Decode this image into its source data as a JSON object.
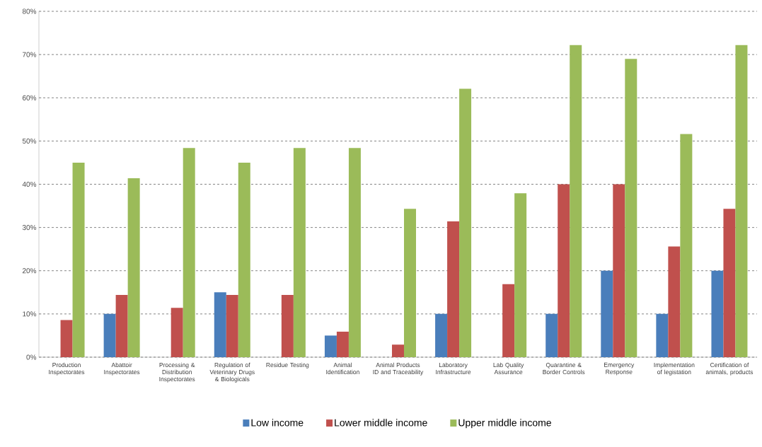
{
  "chart_data": {
    "type": "bar",
    "categories": [
      "Production Inspectorates",
      "Abattoir Inspectorates",
      "Processing & Distribution Inspectorates",
      "Regulation of Veterinary Drugs & Biologicals",
      "Residue Testing",
      "Animal Identification",
      "Animal Products ID and Traceability",
      "Laboratory Infrastructure",
      "Lab Quality Assurance",
      "Quarantine & Border Controls",
      "Emergency Response",
      "Implementation of legistation",
      "Certification of animals, products"
    ],
    "series": [
      {
        "name": "Low income",
        "color": "#4a7ebb",
        "values": [
          0,
          10,
          0,
          15,
          0,
          5,
          0,
          10,
          0,
          10,
          20,
          10,
          20
        ]
      },
      {
        "name": "Lower middle income",
        "color": "#c0504d",
        "values": [
          8.6,
          14.4,
          11.4,
          14.4,
          14.4,
          5.9,
          2.9,
          31.4,
          16.9,
          40,
          40,
          25.6,
          34.3
        ]
      },
      {
        "name": "Upper middle income",
        "color": "#9bbb59",
        "values": [
          45,
          41.4,
          48.4,
          45,
          48.4,
          48.4,
          34.3,
          62.1,
          37.9,
          72.2,
          69,
          51.6,
          72.2
        ]
      }
    ],
    "ylim": [
      0,
      80
    ],
    "yticks": [
      {
        "value": 0,
        "label": "0%"
      },
      {
        "value": 10,
        "label": "10%"
      },
      {
        "value": 20,
        "label": "20%"
      },
      {
        "value": 30,
        "label": "30%"
      },
      {
        "value": 40,
        "label": "40%"
      },
      {
        "value": 50,
        "label": "50%"
      },
      {
        "value": 60,
        "label": "60%"
      },
      {
        "value": 70,
        "label": "70%"
      },
      {
        "value": 80,
        "label": "80%"
      }
    ],
    "grid": "y",
    "legend": "bottom"
  }
}
